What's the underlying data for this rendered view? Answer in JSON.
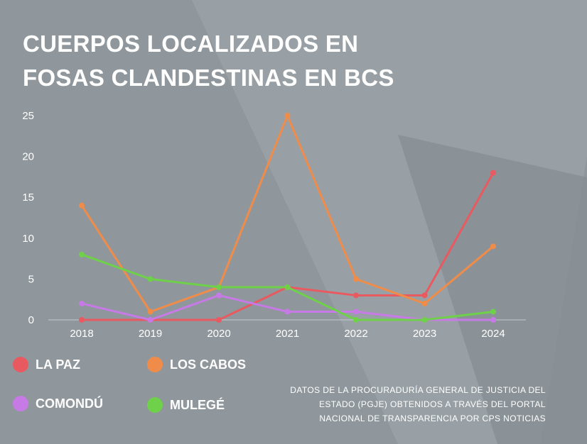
{
  "title_lines": [
    "CUERPOS LOCALIZADOS EN",
    "FOSAS CLANDESTINAS EN BCS"
  ],
  "source_text": "DATOS DE LA PROCURADURÍA GENERAL DE JUSTICIA DEL ESTADO (PGJE) OBTENIDOS A TRAVÉS DEL PORTAL NACIONAL DE TRANSPARENCIA POR CPS NOTICIAS",
  "colors": {
    "background": "#8f979c",
    "la_paz": "#e85a5f",
    "los_cabos": "#f08c4a",
    "comondu": "#c77ae6",
    "mulege": "#6fd04a"
  },
  "chart_data": {
    "type": "line",
    "title": "CUERPOS LOCALIZADOS EN FOSAS CLANDESTINAS EN BCS",
    "xlabel": "",
    "ylabel": "",
    "x": [
      "2018",
      "2019",
      "2020",
      "2021",
      "2022",
      "2023",
      "2024"
    ],
    "ylim": [
      0,
      25
    ],
    "yticks": [
      0,
      5,
      10,
      15,
      20,
      25
    ],
    "grid": false,
    "legend_position": "bottom",
    "series": [
      {
        "name": "LA PAZ",
        "color": "#e85a5f",
        "values": [
          0,
          0,
          0,
          4,
          3,
          3,
          18
        ]
      },
      {
        "name": "LOS CABOS",
        "color": "#f08c4a",
        "values": [
          14,
          1,
          4,
          25,
          5,
          2,
          9
        ]
      },
      {
        "name": "COMONDÚ",
        "color": "#c77ae6",
        "values": [
          2,
          0,
          3,
          1,
          1,
          0,
          0
        ]
      },
      {
        "name": "MULEGÉ",
        "color": "#6fd04a",
        "values": [
          8,
          5,
          4,
          4,
          0,
          0,
          1
        ]
      }
    ]
  }
}
